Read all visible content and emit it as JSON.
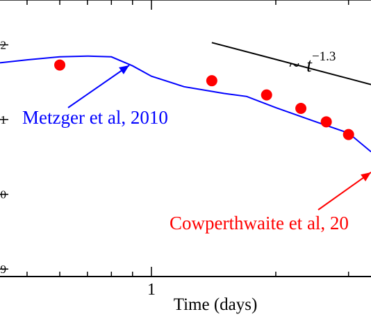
{
  "chart_data": {
    "type": "line",
    "title": "",
    "xlabel": "Time (days)",
    "ylabel": "",
    "x_scale": "log",
    "y_scale": "log",
    "xlim": [
      0.43,
      3.4
    ],
    "ylim_log10": [
      38.9,
      42.6
    ],
    "x_tick_labels": [
      {
        "value": 1,
        "label": "1"
      }
    ],
    "y_tick_labels": [
      {
        "value_log10": 42,
        "label": "2"
      },
      {
        "value_log10": 41,
        "label": "-1"
      },
      {
        "value_log10": 40,
        "label": "0"
      },
      {
        "value_log10": 39,
        "label": "9"
      }
    ],
    "series": [
      {
        "name": "Metzger et al, 2010",
        "kind": "line",
        "color": "#0000ff",
        "x": [
          0.43,
          0.5,
          0.6,
          0.7,
          0.8,
          0.9,
          1.0,
          1.2,
          1.5,
          1.7,
          2.0,
          2.5,
          3.0,
          3.4
        ],
        "y_log10": [
          41.76,
          41.8,
          41.84,
          41.85,
          41.84,
          41.72,
          41.58,
          41.44,
          41.35,
          41.31,
          41.16,
          40.97,
          40.82,
          40.57
        ]
      },
      {
        "name": "Cowperthwaite et al, 20",
        "kind": "scatter",
        "color": "#ff0000",
        "x": [
          0.6,
          1.4,
          1.9,
          2.3,
          2.65,
          3.0
        ],
        "y_log10": [
          41.73,
          41.52,
          41.33,
          41.15,
          40.97,
          40.8
        ]
      },
      {
        "name": "~ t^-1.3",
        "kind": "reference-line",
        "color": "#000000",
        "x": [
          1.4,
          3.4
        ],
        "y_log10": [
          42.03,
          41.47
        ]
      }
    ],
    "annotations": {
      "metzger": "Metzger et al, 2010",
      "cowperthwaite": "Cowperthwaite et al, 20",
      "powerlaw_prefix": "~",
      "powerlaw_base": "t",
      "powerlaw_exponent": "−1.3"
    },
    "grid": false,
    "legend": "none"
  }
}
